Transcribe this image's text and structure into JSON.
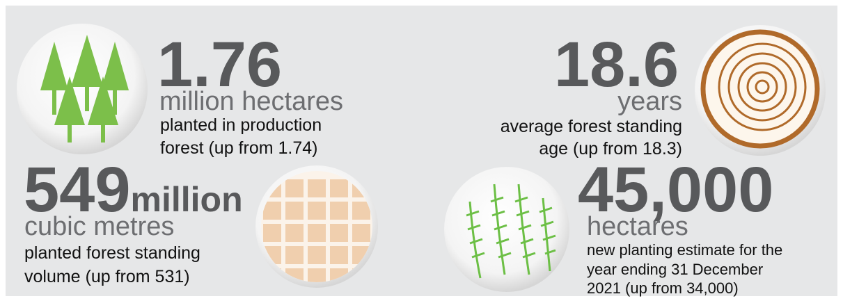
{
  "stats": [
    {
      "number": "1.76",
      "unit": "million hectares",
      "description": [
        "planted in production",
        "forest (up from 1.74)"
      ]
    },
    {
      "number": "18.6",
      "unit": "years",
      "description": [
        "average forest standing",
        "age (up from 18.3)"
      ]
    },
    {
      "number": "549",
      "number_suffix": "million",
      "unit": "cubic metres",
      "description": [
        "planted forest standing",
        "volume (up from 531)"
      ]
    },
    {
      "number": "45,000",
      "unit": "hectares",
      "description": [
        "new planting estimate for the",
        "year ending 31 December",
        "2021 (up from 34,000)"
      ]
    }
  ]
}
